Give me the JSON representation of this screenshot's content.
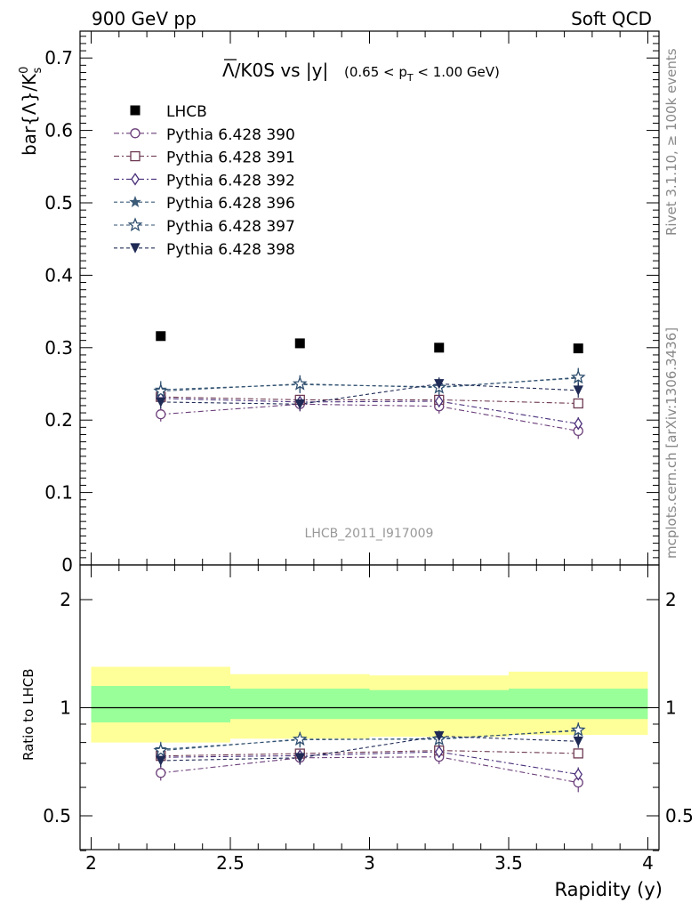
{
  "header": {
    "left": "900 GeV pp",
    "right": "Soft QCD"
  },
  "side_labels": {
    "rivet": "Rivet 3.1.10, ≥ 100k events",
    "mcplots": "mcplots.cern.ch [arXiv:1306.3436]"
  },
  "watermark": "LHCB_2011_I917009",
  "chart_data": {
    "type": "scatter",
    "title_main": "Λ/K0S vs |y|",
    "title_overline": "Λ",
    "title_rest": "/K0S vs |y|",
    "title_range": "(0.65 < p",
    "title_range_sub": "T",
    "title_range_end": " < 1.00 GeV)",
    "ylabel": "bar{Λ}/K",
    "ylabel_sup": "0",
    "ylabel_sub": "s",
    "xlabel": "Rapidity (y)",
    "ratio_ylabel": "Ratio to LHCB",
    "xlim": [
      2,
      4
    ],
    "ylim": [
      0,
      0.74
    ],
    "ratio_ylim": [
      0.35,
      2.3
    ],
    "x_ticks": [
      "2",
      "2.5",
      "3",
      "3.5",
      "4"
    ],
    "y_ticks": [
      "0",
      "0.1",
      "0.2",
      "0.3",
      "0.4",
      "0.5",
      "0.6",
      "0.7"
    ],
    "ratio_y_ticks": [
      "0.5",
      "1",
      "2"
    ],
    "x": [
      2.25,
      2.75,
      3.25,
      3.75
    ],
    "bins": [
      [
        2.0,
        2.5
      ],
      [
        2.5,
        3.0
      ],
      [
        3.0,
        3.5
      ],
      [
        3.5,
        4.0
      ]
    ],
    "data": {
      "name": "LHCB",
      "values": [
        0.316,
        0.306,
        0.3,
        0.299
      ],
      "band_inner": [
        [
          0.91,
          1.15
        ],
        [
          0.93,
          1.13
        ],
        [
          0.93,
          1.12
        ],
        [
          0.93,
          1.13
        ]
      ],
      "band_outer": [
        [
          0.8,
          1.3
        ],
        [
          0.82,
          1.24
        ],
        [
          0.83,
          1.23
        ],
        [
          0.84,
          1.26
        ]
      ]
    },
    "series": [
      {
        "name": "Pythia 6.428 390",
        "color": "#6b3f7a",
        "marker": "circle-open",
        "dash": "6,3,2,3",
        "values": [
          0.208,
          0.222,
          0.219,
          0.185
        ],
        "errors": [
          0.01,
          0.01,
          0.01,
          0.011
        ]
      },
      {
        "name": "Pythia 6.428 391",
        "color": "#6e3a52",
        "marker": "square-open",
        "dash": "6,3,2,3",
        "values": [
          0.232,
          0.228,
          0.228,
          0.223
        ],
        "errors": [
          0.006,
          0.006,
          0.006,
          0.006
        ]
      },
      {
        "name": "Pythia 6.428 392",
        "color": "#4a2f7a",
        "marker": "diamond-open",
        "dash": "6,3,2,3",
        "values": [
          0.23,
          0.225,
          0.226,
          0.195
        ],
        "errors": [
          0.008,
          0.008,
          0.008,
          0.009
        ]
      },
      {
        "name": "Pythia 6.428 396",
        "color": "#3b5b78",
        "marker": "star-filled",
        "dash": "4,3",
        "values": [
          0.242,
          0.249,
          0.246,
          0.258
        ],
        "errors": [
          0.012,
          0.012,
          0.012,
          0.013
        ]
      },
      {
        "name": "Pythia 6.428 397",
        "color": "#2f4f6f",
        "marker": "star-open",
        "dash": "4,3",
        "values": [
          0.24,
          0.25,
          0.245,
          0.259
        ],
        "errors": [
          0.012,
          0.012,
          0.012,
          0.013
        ]
      },
      {
        "name": "Pythia 6.428 398",
        "color": "#1f2a55",
        "marker": "triangle-down",
        "dash": "4,3",
        "values": [
          0.225,
          0.222,
          0.25,
          0.241
        ],
        "errors": [
          0.009,
          0.009,
          0.009,
          0.01
        ]
      }
    ]
  }
}
